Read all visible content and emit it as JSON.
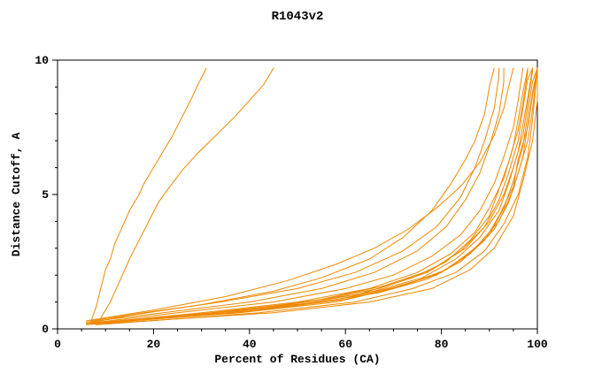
{
  "chart_data": {
    "type": "line",
    "title": "R1043v2",
    "xlabel": "Percent of Residues (CA)",
    "ylabel": "Distance Cutoff, A",
    "xlim": [
      0,
      100
    ],
    "ylim": [
      0,
      10
    ],
    "xticks": [
      0,
      20,
      40,
      60,
      80,
      100
    ],
    "yticks": [
      0,
      5,
      10
    ],
    "x_minor_step": 5,
    "y_minor_step": 1,
    "grid": false,
    "legend": "none",
    "line_color": "#ee8800",
    "axis_color": "#000000",
    "background_color": "#ffffff",
    "series": [
      [
        [
          7,
          0.3
        ],
        [
          8,
          0.8
        ],
        [
          9,
          1.5
        ],
        [
          10,
          2.2
        ],
        [
          11,
          2.6
        ],
        [
          12,
          3.2
        ],
        [
          13,
          3.6
        ],
        [
          15,
          4.4
        ],
        [
          17,
          5.0
        ],
        [
          18,
          5.4
        ],
        [
          20,
          6.0
        ],
        [
          22,
          6.6
        ],
        [
          24,
          7.2
        ],
        [
          26,
          7.9
        ],
        [
          28,
          8.6
        ],
        [
          29,
          9.0
        ],
        [
          31,
          9.7
        ]
      ],
      [
        [
          9,
          0.4
        ],
        [
          11,
          1.0
        ],
        [
          13,
          1.8
        ],
        [
          15,
          2.6
        ],
        [
          17,
          3.3
        ],
        [
          19,
          4.0
        ],
        [
          21,
          4.7
        ],
        [
          23,
          5.2
        ],
        [
          26,
          5.9
        ],
        [
          29,
          6.5
        ],
        [
          33,
          7.2
        ],
        [
          37,
          7.9
        ],
        [
          40,
          8.5
        ],
        [
          43,
          9.1
        ],
        [
          45,
          9.7
        ]
      ],
      [
        [
          6,
          0.2
        ],
        [
          15,
          0.5
        ],
        [
          30,
          0.9
        ],
        [
          45,
          1.4
        ],
        [
          55,
          1.9
        ],
        [
          65,
          2.6
        ],
        [
          72,
          3.4
        ],
        [
          78,
          4.4
        ],
        [
          82,
          5.4
        ],
        [
          85,
          6.3
        ],
        [
          87,
          7.0
        ],
        [
          89,
          8.0
        ],
        [
          90,
          9.0
        ],
        [
          91,
          9.7
        ]
      ],
      [
        [
          6,
          0.3
        ],
        [
          20,
          0.7
        ],
        [
          35,
          1.2
        ],
        [
          48,
          1.8
        ],
        [
          58,
          2.4
        ],
        [
          66,
          3.0
        ],
        [
          73,
          3.7
        ],
        [
          79,
          4.5
        ],
        [
          84,
          5.3
        ],
        [
          88,
          6.2
        ],
        [
          91,
          7.2
        ],
        [
          93,
          8.2
        ],
        [
          94,
          9.0
        ],
        [
          95,
          9.7
        ]
      ],
      [
        [
          6,
          0.2
        ],
        [
          25,
          0.6
        ],
        [
          45,
          1.0
        ],
        [
          60,
          1.5
        ],
        [
          70,
          2.0
        ],
        [
          78,
          2.7
        ],
        [
          84,
          3.5
        ],
        [
          88,
          4.4
        ],
        [
          91,
          5.4
        ],
        [
          93,
          6.4
        ],
        [
          95,
          7.5
        ],
        [
          96,
          8.5
        ],
        [
          97,
          9.7
        ]
      ],
      [
        [
          7,
          0.2
        ],
        [
          30,
          0.6
        ],
        [
          50,
          1.0
        ],
        [
          65,
          1.5
        ],
        [
          75,
          2.1
        ],
        [
          82,
          2.8
        ],
        [
          87,
          3.6
        ],
        [
          90,
          4.5
        ],
        [
          93,
          5.6
        ],
        [
          95,
          6.8
        ],
        [
          96,
          7.8
        ],
        [
          97,
          8.8
        ],
        [
          98,
          9.7
        ]
      ],
      [
        [
          6,
          0.15
        ],
        [
          28,
          0.5
        ],
        [
          48,
          0.9
        ],
        [
          63,
          1.3
        ],
        [
          74,
          1.9
        ],
        [
          81,
          2.5
        ],
        [
          86,
          3.3
        ],
        [
          90,
          4.2
        ],
        [
          92,
          5.2
        ],
        [
          94,
          6.2
        ],
        [
          96,
          7.4
        ],
        [
          97,
          8.4
        ],
        [
          98,
          9.6
        ]
      ],
      [
        [
          8,
          0.2
        ],
        [
          32,
          0.6
        ],
        [
          52,
          1.0
        ],
        [
          67,
          1.5
        ],
        [
          77,
          2.1
        ],
        [
          84,
          2.9
        ],
        [
          89,
          3.8
        ],
        [
          92,
          4.8
        ],
        [
          94,
          5.8
        ],
        [
          96,
          7.0
        ],
        [
          97,
          8.2
        ],
        [
          98,
          9.3
        ],
        [
          99,
          9.7
        ]
      ],
      [
        [
          7,
          0.2
        ],
        [
          35,
          0.6
        ],
        [
          55,
          1.1
        ],
        [
          68,
          1.6
        ],
        [
          78,
          2.2
        ],
        [
          85,
          3.0
        ],
        [
          90,
          4.0
        ],
        [
          93,
          5.0
        ],
        [
          95,
          6.0
        ],
        [
          97,
          7.2
        ],
        [
          98,
          8.4
        ],
        [
          99,
          9.6
        ]
      ],
      [
        [
          6,
          0.2
        ],
        [
          30,
          0.55
        ],
        [
          52,
          0.95
        ],
        [
          66,
          1.4
        ],
        [
          76,
          1.9
        ],
        [
          83,
          2.6
        ],
        [
          88,
          3.4
        ],
        [
          92,
          4.4
        ],
        [
          94,
          5.4
        ],
        [
          96,
          6.6
        ],
        [
          97,
          7.6
        ],
        [
          98,
          8.6
        ],
        [
          99,
          9.7
        ]
      ],
      [
        [
          8,
          0.2
        ],
        [
          38,
          0.6
        ],
        [
          58,
          1.0
        ],
        [
          70,
          1.5
        ],
        [
          80,
          2.1
        ],
        [
          86,
          2.8
        ],
        [
          91,
          3.7
        ],
        [
          94,
          4.7
        ],
        [
          96,
          5.8
        ],
        [
          98,
          7.0
        ],
        [
          99,
          8.2
        ],
        [
          100,
          9.7
        ]
      ],
      [
        [
          7,
          0.2
        ],
        [
          40,
          0.65
        ],
        [
          60,
          1.1
        ],
        [
          72,
          1.6
        ],
        [
          81,
          2.2
        ],
        [
          87,
          3.0
        ],
        [
          92,
          4.0
        ],
        [
          95,
          5.2
        ],
        [
          97,
          6.4
        ],
        [
          98,
          7.6
        ],
        [
          99,
          8.8
        ],
        [
          100,
          9.7
        ]
      ],
      [
        [
          9,
          0.25
        ],
        [
          36,
          0.6
        ],
        [
          57,
          1.05
        ],
        [
          69,
          1.5
        ],
        [
          79,
          2.0
        ],
        [
          85,
          2.7
        ],
        [
          90,
          3.5
        ],
        [
          93,
          4.5
        ],
        [
          95,
          5.5
        ],
        [
          97,
          6.8
        ],
        [
          98,
          8.0
        ],
        [
          99,
          9.2
        ],
        [
          100,
          9.7
        ]
      ],
      [
        [
          8,
          0.15
        ],
        [
          42,
          0.6
        ],
        [
          62,
          1.0
        ],
        [
          74,
          1.5
        ],
        [
          83,
          2.1
        ],
        [
          89,
          2.9
        ],
        [
          93,
          3.9
        ],
        [
          96,
          5.0
        ],
        [
          98,
          6.4
        ],
        [
          99,
          7.8
        ],
        [
          100,
          9.7
        ]
      ],
      [
        [
          6,
          0.2
        ],
        [
          33,
          0.55
        ],
        [
          53,
          0.95
        ],
        [
          67,
          1.35
        ],
        [
          77,
          1.85
        ],
        [
          84,
          2.5
        ],
        [
          89,
          3.3
        ],
        [
          92,
          4.2
        ],
        [
          95,
          5.3
        ],
        [
          96,
          6.3
        ],
        [
          98,
          7.5
        ],
        [
          99,
          8.7
        ],
        [
          100,
          9.6
        ]
      ],
      [
        [
          6,
          0.25
        ],
        [
          22,
          0.6
        ],
        [
          40,
          1.0
        ],
        [
          55,
          1.5
        ],
        [
          66,
          2.1
        ],
        [
          75,
          2.9
        ],
        [
          81,
          3.8
        ],
        [
          85,
          4.8
        ],
        [
          88,
          5.8
        ],
        [
          90,
          6.8
        ],
        [
          92,
          8.0
        ],
        [
          93,
          9.2
        ],
        [
          93,
          9.7
        ]
      ],
      [
        [
          7,
          0.3
        ],
        [
          18,
          0.6
        ],
        [
          34,
          1.0
        ],
        [
          50,
          1.5
        ],
        [
          62,
          2.1
        ],
        [
          72,
          2.9
        ],
        [
          79,
          3.8
        ],
        [
          84,
          4.9
        ],
        [
          87,
          6.0
        ],
        [
          89,
          7.0
        ],
        [
          91,
          8.2
        ],
        [
          92,
          9.4
        ],
        [
          92,
          9.7
        ]
      ],
      [
        [
          10,
          0.2
        ],
        [
          45,
          0.6
        ],
        [
          65,
          1.0
        ],
        [
          78,
          1.5
        ],
        [
          86,
          2.2
        ],
        [
          91,
          3.0
        ],
        [
          95,
          4.2
        ],
        [
          97,
          5.5
        ],
        [
          99,
          7.0
        ],
        [
          100,
          8.5
        ],
        [
          100,
          9.7
        ]
      ]
    ]
  }
}
